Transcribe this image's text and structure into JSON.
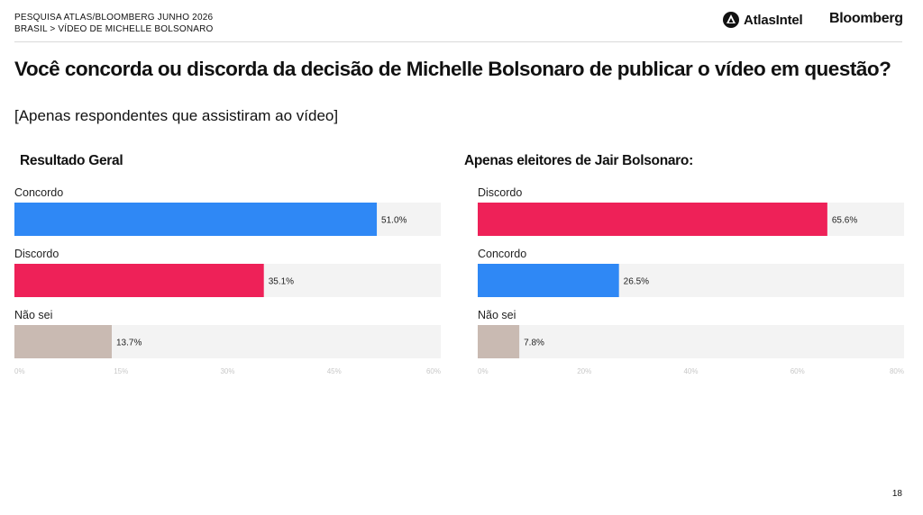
{
  "header": {
    "line1": "PESQUISA ATLAS/BLOOMBERG JUNHO 2026",
    "line2": "BRASIL > VÍDEO DE MICHELLE BOLSONARO",
    "logo_atlas": "AtlasIntel",
    "logo_bloomberg": "Bloomberg"
  },
  "title": "Você concorda ou discorda da decisão de Michelle Bolsonaro de publicar o vídeo em questão?",
  "subtitle": "[Apenas respondentes que assistiram ao vídeo]",
  "page_number": "18",
  "chart_data": [
    {
      "type": "bar",
      "orientation": "horizontal",
      "title": "Resultado Geral",
      "categories": [
        "Concordo",
        "Discordo",
        "Não sei"
      ],
      "values": [
        51.0,
        35.1,
        13.7
      ],
      "labels": [
        "51.0%",
        "35.1%",
        "13.7%"
      ],
      "colors": [
        "#2f88f5",
        "#ee2158",
        "#c9bab2"
      ],
      "xlim": [
        0,
        60
      ],
      "ticks": [
        0,
        15,
        30,
        45,
        60
      ],
      "tick_labels": [
        "0%",
        "15%",
        "30%",
        "45%",
        "60%"
      ],
      "grid": false
    },
    {
      "type": "bar",
      "orientation": "horizontal",
      "title": "Apenas eleitores de Jair Bolsonaro:",
      "categories": [
        "Discordo",
        "Concordo",
        "Não sei"
      ],
      "values": [
        65.6,
        26.5,
        7.8
      ],
      "labels": [
        "65.6%",
        "26.5%",
        "7.8%"
      ],
      "colors": [
        "#ee2158",
        "#2f88f5",
        "#c9bab2"
      ],
      "xlim": [
        0,
        80
      ],
      "ticks": [
        0,
        20,
        40,
        60,
        80
      ],
      "tick_labels": [
        "0%",
        "20%",
        "40%",
        "60%",
        "80%"
      ],
      "grid": false
    }
  ]
}
